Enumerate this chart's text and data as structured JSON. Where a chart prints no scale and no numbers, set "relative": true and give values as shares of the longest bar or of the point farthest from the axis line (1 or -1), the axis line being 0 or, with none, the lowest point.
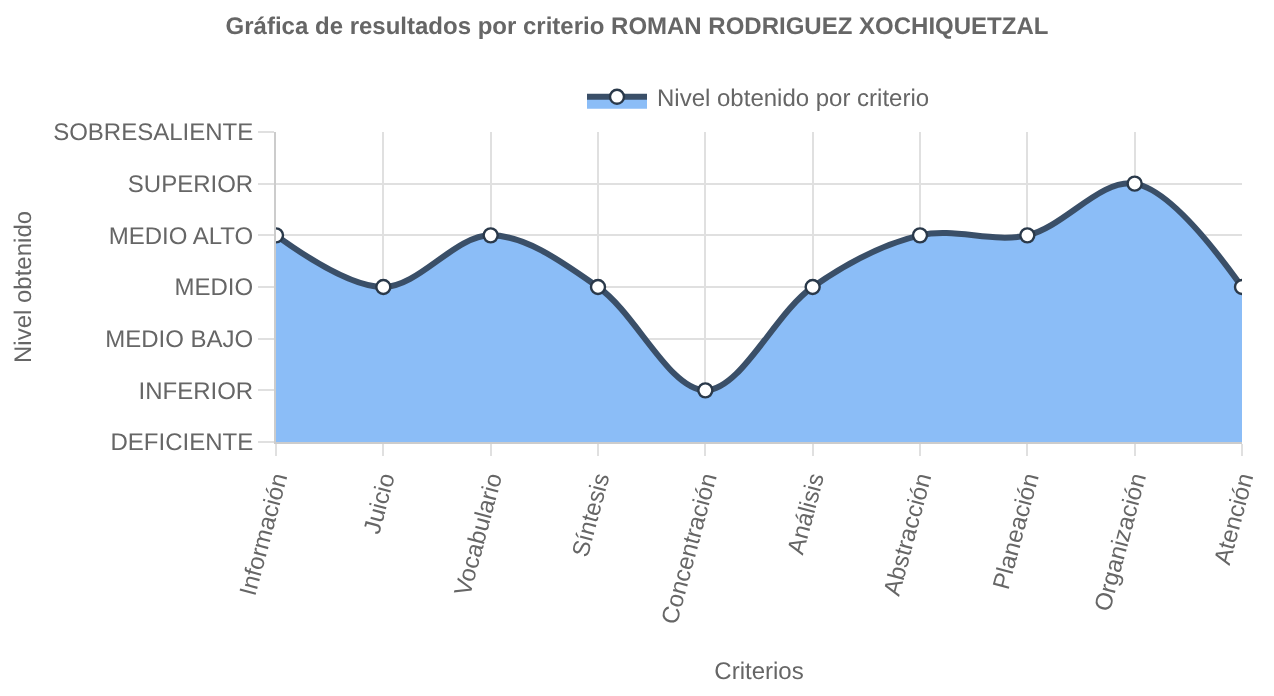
{
  "chart_data": {
    "type": "area",
    "title": "Gráfica de resultados por criterio ROMAN RODRIGUEZ XOCHIQUETZAL",
    "xlabel": "Criterios",
    "annotations": [
      "Nivel obtenido"
    ],
    "categories": [
      "Información",
      "Juicio",
      "Vocabulario",
      "Síntesis",
      "Concentración",
      "Análisis",
      "Abstracción",
      "Planeación",
      "Organización",
      "Atención"
    ],
    "y_categories": [
      "SOBRESALIENTE",
      "SUPERIOR",
      "MEDIO ALTO",
      "MEDIO",
      "MEDIO BAJO",
      "INFERIOR",
      "DEFICIENTE"
    ],
    "relative": true,
    "series": [
      {
        "name": "Nivel obtenido por criterio",
        "color": "#8bbdf7",
        "values": [
          0.8,
          0.6,
          0.8,
          0.6,
          0.2,
          0.6,
          0.8,
          0.8,
          1,
          0.6
        ]
      }
    ],
    "grid": true,
    "legend": "top",
    "marker": "circle",
    "line_style": "solid"
  }
}
